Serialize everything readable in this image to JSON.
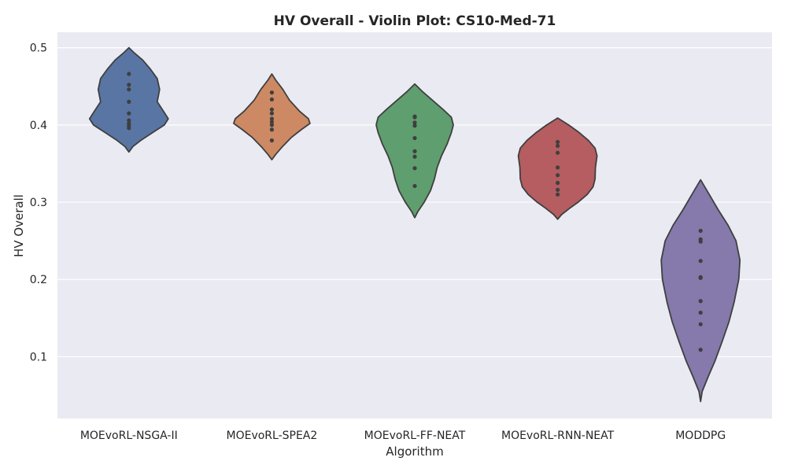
{
  "chart_data": {
    "type": "violin",
    "title": "HV Overall - Violin Plot: CS10-Med-71",
    "xlabel": "Algorithm",
    "ylabel": "HV Overall",
    "ylim": [
      0.02,
      0.52
    ],
    "yticks": [
      0.1,
      0.2,
      0.3,
      0.4,
      0.5
    ],
    "ytick_labels": [
      "0.1",
      "0.2",
      "0.3",
      "0.4",
      "0.5"
    ],
    "grid": true,
    "colors": {
      "background": "#eaeaf2",
      "grid": "#ffffff",
      "edge": "#3f3f3f"
    },
    "categories": [
      "MOEvoRL-NSGA-II",
      "MOEvoRL-SPEA2",
      "MOEvoRL-FF-NEAT",
      "MOEvoRL-RNN-NEAT",
      "MODDPG"
    ],
    "series": [
      {
        "category": "MOEvoRL-NSGA-II",
        "color": "#5975a4",
        "range": [
          0.365,
          0.5
        ],
        "points": [
          0.466,
          0.452,
          0.446,
          0.43,
          0.415,
          0.406,
          0.402,
          0.399,
          0.396
        ],
        "density": [
          [
            0.365,
            0.0
          ],
          [
            0.372,
            0.1
          ],
          [
            0.38,
            0.3
          ],
          [
            0.39,
            0.6
          ],
          [
            0.4,
            0.9
          ],
          [
            0.408,
            1.0
          ],
          [
            0.416,
            0.9
          ],
          [
            0.43,
            0.72
          ],
          [
            0.446,
            0.78
          ],
          [
            0.46,
            0.72
          ],
          [
            0.472,
            0.55
          ],
          [
            0.484,
            0.35
          ],
          [
            0.494,
            0.12
          ],
          [
            0.5,
            0.0
          ]
        ]
      },
      {
        "category": "MOEvoRL-SPEA2",
        "color": "#cc8963",
        "range": [
          0.355,
          0.466
        ],
        "points": [
          0.442,
          0.433,
          0.42,
          0.415,
          0.408,
          0.404,
          0.4,
          0.394,
          0.38
        ],
        "density": [
          [
            0.355,
            0.0
          ],
          [
            0.362,
            0.1
          ],
          [
            0.372,
            0.27
          ],
          [
            0.384,
            0.5
          ],
          [
            0.394,
            0.75
          ],
          [
            0.402,
            0.97
          ],
          [
            0.408,
            0.93
          ],
          [
            0.418,
            0.7
          ],
          [
            0.432,
            0.45
          ],
          [
            0.446,
            0.28
          ],
          [
            0.458,
            0.1
          ],
          [
            0.466,
            0.0
          ]
        ]
      },
      {
        "category": "MOEvoRL-FF-NEAT",
        "color": "#5f9e6e",
        "range": [
          0.28,
          0.453
        ],
        "points": [
          0.411,
          0.41,
          0.403,
          0.399,
          0.383,
          0.366,
          0.359,
          0.344,
          0.321
        ],
        "density": [
          [
            0.28,
            0.0
          ],
          [
            0.288,
            0.08
          ],
          [
            0.3,
            0.24
          ],
          [
            0.315,
            0.4
          ],
          [
            0.33,
            0.5
          ],
          [
            0.345,
            0.57
          ],
          [
            0.36,
            0.68
          ],
          [
            0.375,
            0.82
          ],
          [
            0.39,
            0.93
          ],
          [
            0.4,
            0.98
          ],
          [
            0.41,
            0.93
          ],
          [
            0.42,
            0.72
          ],
          [
            0.432,
            0.45
          ],
          [
            0.443,
            0.2
          ],
          [
            0.453,
            0.0
          ]
        ]
      },
      {
        "category": "MOEvoRL-RNN-NEAT",
        "color": "#b55d60",
        "range": [
          0.278,
          0.409
        ],
        "points": [
          0.378,
          0.373,
          0.364,
          0.345,
          0.335,
          0.325,
          0.316,
          0.31
        ],
        "density": [
          [
            0.278,
            0.0
          ],
          [
            0.284,
            0.1
          ],
          [
            0.292,
            0.3
          ],
          [
            0.3,
            0.52
          ],
          [
            0.31,
            0.75
          ],
          [
            0.32,
            0.9
          ],
          [
            0.33,
            0.95
          ],
          [
            0.345,
            0.96
          ],
          [
            0.36,
            1.0
          ],
          [
            0.37,
            0.95
          ],
          [
            0.38,
            0.78
          ],
          [
            0.39,
            0.55
          ],
          [
            0.4,
            0.28
          ],
          [
            0.409,
            0.0
          ]
        ]
      },
      {
        "category": "MODDPG",
        "color": "#857aab",
        "range": [
          0.042,
          0.329
        ],
        "points": [
          0.263,
          0.252,
          0.249,
          0.224,
          0.203,
          0.202,
          0.172,
          0.157,
          0.142,
          0.109
        ],
        "density": [
          [
            0.042,
            0.0
          ],
          [
            0.055,
            0.04
          ],
          [
            0.075,
            0.2
          ],
          [
            0.095,
            0.37
          ],
          [
            0.12,
            0.55
          ],
          [
            0.145,
            0.72
          ],
          [
            0.17,
            0.85
          ],
          [
            0.2,
            0.97
          ],
          [
            0.225,
            1.0
          ],
          [
            0.25,
            0.9
          ],
          [
            0.27,
            0.7
          ],
          [
            0.29,
            0.45
          ],
          [
            0.31,
            0.22
          ],
          [
            0.329,
            0.0
          ]
        ]
      }
    ]
  }
}
